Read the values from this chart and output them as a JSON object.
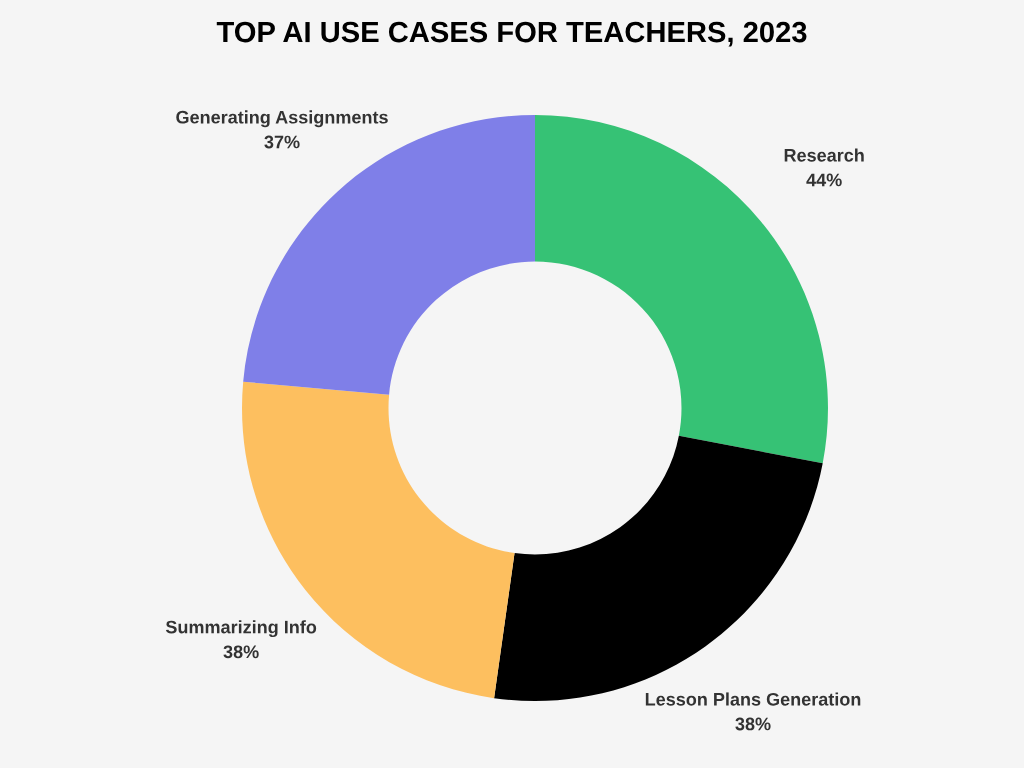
{
  "chart_data": {
    "type": "donut",
    "title": "TOP AI USE CASES FOR TEACHERS, 2023",
    "categories": [
      "Research",
      "Lesson Plans Generation",
      "Summarizing Info",
      "Generating Assignments"
    ],
    "values": [
      44,
      38,
      38,
      37
    ],
    "value_labels": [
      "44%",
      "38%",
      "38%",
      "37%"
    ],
    "colors": [
      "#36c275",
      "#000000",
      "#fdbf5f",
      "#7f7fe8"
    ],
    "legend": false
  }
}
